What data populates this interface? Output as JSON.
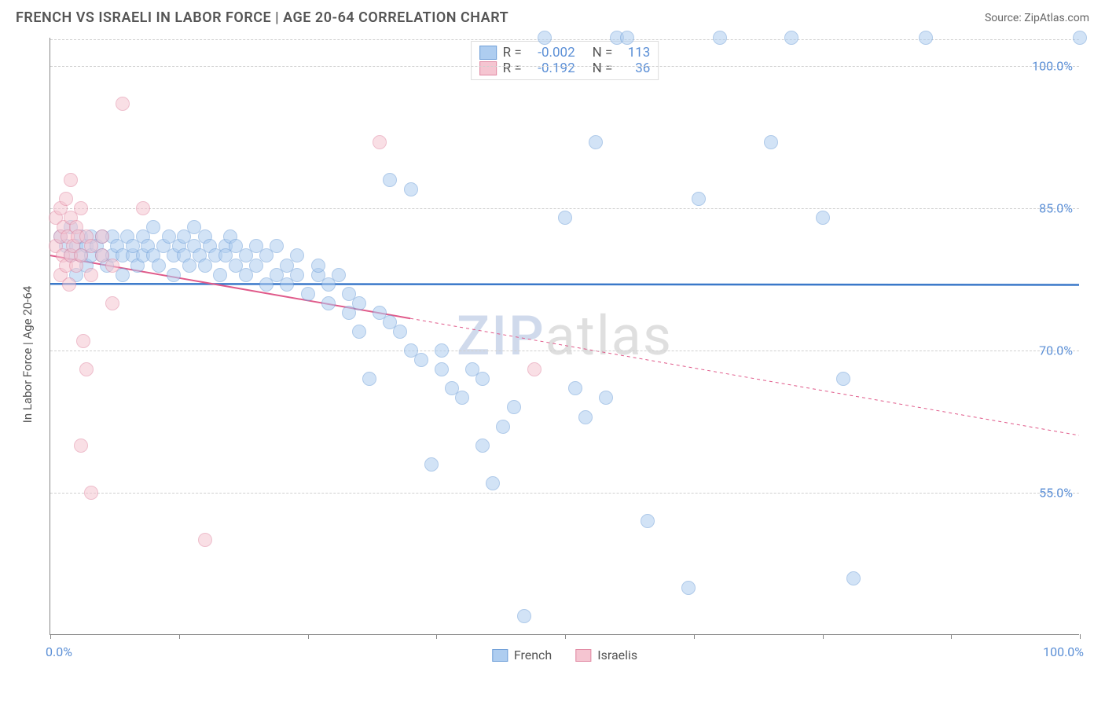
{
  "title": "FRENCH VS ISRAELI IN LABOR FORCE | AGE 20-64 CORRELATION CHART",
  "source": "Source: ZipAtlas.com",
  "yaxis_label": "In Labor Force | Age 20-64",
  "watermark": {
    "part1": "ZIP",
    "part2": "atlas"
  },
  "chart": {
    "type": "scatter",
    "xlim": [
      0,
      100
    ],
    "ylim": [
      40,
      103
    ],
    "x_display_min": "0.0%",
    "x_display_max": "100.0%",
    "xtick_positions": [
      0,
      12.5,
      25,
      37.5,
      50,
      62.5,
      75,
      87.5,
      100
    ],
    "yticks": [
      55.0,
      70.0,
      85.0,
      100.0
    ],
    "ytick_labels": [
      "55.0%",
      "70.0%",
      "85.0%",
      "100.0%"
    ],
    "grid_color": "#d0d0d0",
    "background_color": "#ffffff",
    "axis_color": "#888888",
    "marker_radius": 9,
    "marker_opacity": 0.55,
    "label_fontsize": 15,
    "tick_fontsize": 16,
    "tick_color": "#5b8fd6"
  },
  "series": [
    {
      "name": "French",
      "color_fill": "#aecdf0",
      "color_stroke": "#6f9fd8",
      "legend_r": "-0.002",
      "legend_n": "113",
      "trend": {
        "y_at_x0": 77.0,
        "y_at_x100": 76.9,
        "color": "#3a78c9",
        "width": 2.5,
        "dash_from_x": 100
      },
      "points": [
        [
          1,
          82
        ],
        [
          1.5,
          81
        ],
        [
          2,
          80
        ],
        [
          2,
          83
        ],
        [
          2.5,
          78
        ],
        [
          2.5,
          81
        ],
        [
          3,
          82
        ],
        [
          3,
          80
        ],
        [
          3.5,
          81
        ],
        [
          3.5,
          79
        ],
        [
          4,
          82
        ],
        [
          4,
          80
        ],
        [
          4.5,
          81
        ],
        [
          5,
          80
        ],
        [
          5,
          82
        ],
        [
          5.5,
          79
        ],
        [
          6,
          82
        ],
        [
          6,
          80
        ],
        [
          6.5,
          81
        ],
        [
          7,
          80
        ],
        [
          7,
          78
        ],
        [
          7.5,
          82
        ],
        [
          8,
          80
        ],
        [
          8,
          81
        ],
        [
          8.5,
          79
        ],
        [
          9,
          82
        ],
        [
          9,
          80
        ],
        [
          9.5,
          81
        ],
        [
          10,
          80
        ],
        [
          10,
          83
        ],
        [
          10.5,
          79
        ],
        [
          11,
          81
        ],
        [
          11.5,
          82
        ],
        [
          12,
          80
        ],
        [
          12,
          78
        ],
        [
          12.5,
          81
        ],
        [
          13,
          80
        ],
        [
          13,
          82
        ],
        [
          13.5,
          79
        ],
        [
          14,
          81
        ],
        [
          14,
          83
        ],
        [
          14.5,
          80
        ],
        [
          15,
          82
        ],
        [
          15,
          79
        ],
        [
          15.5,
          81
        ],
        [
          16,
          80
        ],
        [
          16.5,
          78
        ],
        [
          17,
          81
        ],
        [
          17,
          80
        ],
        [
          17.5,
          82
        ],
        [
          18,
          79
        ],
        [
          18,
          81
        ],
        [
          19,
          80
        ],
        [
          19,
          78
        ],
        [
          20,
          81
        ],
        [
          20,
          79
        ],
        [
          21,
          77
        ],
        [
          21,
          80
        ],
        [
          22,
          78
        ],
        [
          22,
          81
        ],
        [
          23,
          79
        ],
        [
          23,
          77
        ],
        [
          24,
          80
        ],
        [
          24,
          78
        ],
        [
          25,
          76
        ],
        [
          26,
          78
        ],
        [
          26,
          79
        ],
        [
          27,
          75
        ],
        [
          27,
          77
        ],
        [
          28,
          78
        ],
        [
          29,
          74
        ],
        [
          29,
          76
        ],
        [
          30,
          72
        ],
        [
          30,
          75
        ],
        [
          31,
          67
        ],
        [
          32,
          74
        ],
        [
          33,
          73
        ],
        [
          33,
          88
        ],
        [
          34,
          72
        ],
        [
          35,
          70
        ],
        [
          35,
          87
        ],
        [
          36,
          69
        ],
        [
          37,
          58
        ],
        [
          38,
          68
        ],
        [
          38,
          70
        ],
        [
          39,
          66
        ],
        [
          40,
          65
        ],
        [
          41,
          68
        ],
        [
          42,
          60
        ],
        [
          42,
          67
        ],
        [
          43,
          56
        ],
        [
          44,
          62
        ],
        [
          45,
          64
        ],
        [
          46,
          42
        ],
        [
          48,
          103
        ],
        [
          50,
          84
        ],
        [
          51,
          66
        ],
        [
          52,
          63
        ],
        [
          53,
          92
        ],
        [
          54,
          65
        ],
        [
          55,
          103
        ],
        [
          56,
          103
        ],
        [
          58,
          52
        ],
        [
          62,
          45
        ],
        [
          63,
          86
        ],
        [
          65,
          103
        ],
        [
          70,
          92
        ],
        [
          72,
          103
        ],
        [
          75,
          84
        ],
        [
          77,
          67
        ],
        [
          78,
          46
        ],
        [
          85,
          103
        ],
        [
          100,
          103
        ]
      ]
    },
    {
      "name": "Israelis",
      "color_fill": "#f5c5d1",
      "color_stroke": "#e189a3",
      "legend_r": "-0.192",
      "legend_n": "36",
      "trend": {
        "y_at_x0": 80.0,
        "y_at_x100": 61.0,
        "color": "#e05a8a",
        "width": 2,
        "dash_from_x": 35
      },
      "points": [
        [
          0.5,
          81
        ],
        [
          0.5,
          84
        ],
        [
          1,
          78
        ],
        [
          1,
          82
        ],
        [
          1,
          85
        ],
        [
          1.2,
          80
        ],
        [
          1.3,
          83
        ],
        [
          1.5,
          79
        ],
        [
          1.5,
          86
        ],
        [
          1.7,
          82
        ],
        [
          1.8,
          77
        ],
        [
          2,
          80
        ],
        [
          2,
          84
        ],
        [
          2,
          88
        ],
        [
          2.2,
          81
        ],
        [
          2.5,
          79
        ],
        [
          2.5,
          83
        ],
        [
          2.7,
          82
        ],
        [
          3,
          80
        ],
        [
          3,
          85
        ],
        [
          3,
          60
        ],
        [
          3.2,
          71
        ],
        [
          3.5,
          68
        ],
        [
          3.5,
          82
        ],
        [
          4,
          78
        ],
        [
          4,
          81
        ],
        [
          4,
          55
        ],
        [
          5,
          80
        ],
        [
          5,
          82
        ],
        [
          6,
          79
        ],
        [
          6,
          75
        ],
        [
          7,
          96
        ],
        [
          9,
          85
        ],
        [
          15,
          50
        ],
        [
          32,
          92
        ],
        [
          47,
          68
        ]
      ]
    }
  ],
  "legend_top": {
    "r_label": "R =",
    "n_label": "N ="
  },
  "legend_bottom": {
    "items": [
      "French",
      "Israelis"
    ]
  }
}
